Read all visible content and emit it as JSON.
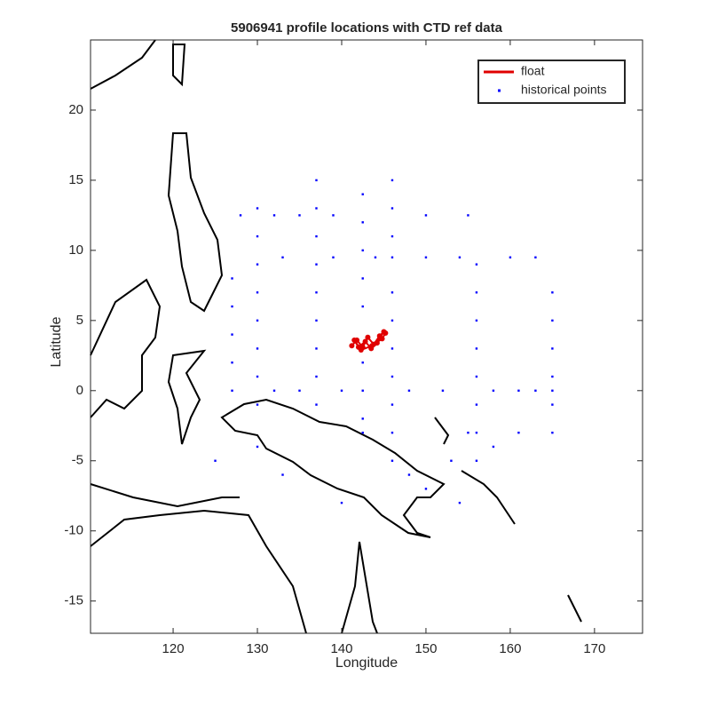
{
  "chart_data": {
    "type": "scatter",
    "title": "5906941 profile locations with CTD ref data",
    "xlabel": "Longitude",
    "ylabel": "Latitude",
    "xlim": [
      110.2,
      175.7
    ],
    "ylim": [
      -17.3,
      25
    ],
    "xticks": [
      120,
      130,
      140,
      150,
      160,
      170
    ],
    "yticks": [
      -15,
      -10,
      -5,
      0,
      5,
      10,
      15,
      20
    ],
    "legend": "northeast",
    "series": [
      {
        "name": "float",
        "color": "#e00000",
        "style": "line",
        "x": [
          141.2,
          141.8,
          142.5,
          143.1,
          143.8,
          144.5,
          145.0,
          144.2,
          143.5,
          142.8,
          142.0,
          141.5,
          142.3,
          143.6,
          144.8,
          145.2
        ],
        "y": [
          3.2,
          3.6,
          3.1,
          3.8,
          3.3,
          3.9,
          4.2,
          3.4,
          3.0,
          3.5,
          3.1,
          3.6,
          2.9,
          3.2,
          3.7,
          4.1
        ]
      },
      {
        "name": "historical points",
        "color": "#0000ff",
        "style": "points",
        "x": [
          137,
          137,
          137,
          137,
          137,
          137,
          137,
          137,
          137,
          142.5,
          142.5,
          142.5,
          142.5,
          142.5,
          142.5,
          142.5,
          142.5,
          142.5,
          146,
          146,
          146,
          146,
          146,
          146,
          146,
          146,
          146,
          146,
          146,
          156,
          156,
          156,
          156,
          156,
          156,
          156,
          156,
          165,
          165,
          165,
          165,
          165,
          165,
          165,
          130,
          130,
          130,
          130,
          130,
          130,
          130,
          130,
          130,
          127,
          127,
          127,
          127,
          127,
          133,
          139,
          144,
          150,
          154,
          160,
          163,
          132,
          135,
          140,
          148,
          152,
          158,
          161,
          163,
          128,
          132,
          135,
          139,
          150,
          155,
          148,
          150,
          153,
          154,
          158,
          155,
          161,
          133,
          140,
          125
        ],
        "y": [
          15,
          13,
          11,
          9,
          7,
          5,
          3,
          1,
          -1,
          14,
          12,
          10,
          8,
          6,
          2,
          0,
          -2,
          -3,
          15,
          13,
          11,
          9.5,
          7,
          5,
          3,
          1,
          -1,
          -3,
          -5,
          9,
          7,
          5,
          3,
          1,
          -1,
          -3,
          -5,
          7,
          5,
          3,
          1,
          0,
          -1,
          -3,
          13,
          11,
          9,
          7,
          5,
          3,
          1,
          -1,
          -4,
          8,
          6,
          4,
          2,
          0,
          9.5,
          9.5,
          9.5,
          9.5,
          9.5,
          9.5,
          9.5,
          0,
          0,
          0,
          0,
          0,
          0,
          0,
          0,
          12.5,
          12.5,
          12.5,
          12.5,
          12.5,
          12.5,
          -6,
          -7,
          -5,
          -8,
          -4,
          -3,
          -3,
          -6,
          -8,
          -5
        ]
      }
    ]
  }
}
